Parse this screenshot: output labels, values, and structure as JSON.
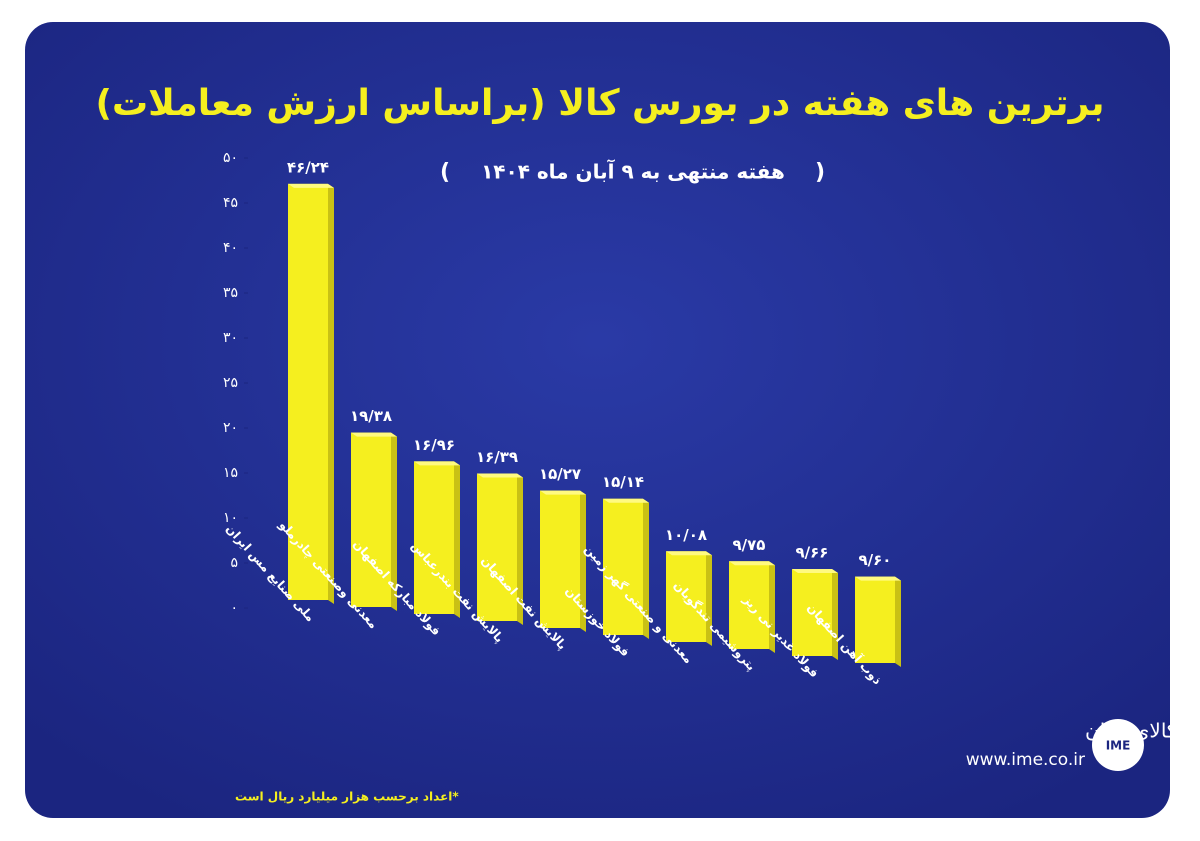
{
  "chart_data": {
    "type": "bar",
    "title": "برترین های هفته در بورس کالا (براساس ارزش معاملات)",
    "subtitle": "هفته منتهی به ۹ آبان ماه ۱۴۰۴",
    "categories": [
      "ملی صنایع مس ایران",
      "معدنی وصنعتی چادرملو",
      "فولاد مبارکه اصفهان",
      "پالایش نفت بندرعباس",
      "پالایش نفت اصفهان",
      "فولاد خوزستان",
      "معدنی و صنعتی گهر زمین",
      "پتروشیمی تندگویان",
      "فولاد غدیر نی ریز",
      "ذوب آهن اصفهان"
    ],
    "values": [
      46.24,
      19.38,
      16.96,
      16.39,
      15.27,
      15.14,
      10.08,
      9.75,
      9.66,
      9.6
    ],
    "value_labels": [
      "۴۶/۲۴",
      "۱۹/۳۸",
      "۱۶/۹۶",
      "۱۶/۳۹",
      "۱۵/۲۷",
      "۱۵/۱۴",
      "۱۰/۰۸",
      "۹/۷۵",
      "۹/۶۶",
      "۹/۶۰"
    ],
    "color": "#f5ef1f",
    "ylim": [
      0,
      50
    ],
    "yticks": [
      {
        "value": 0,
        "label": "۰"
      },
      {
        "value": 5,
        "label": "۵"
      },
      {
        "value": 10,
        "label": "۱۰"
      },
      {
        "value": 15,
        "label": "۱۵"
      },
      {
        "value": 20,
        "label": "۲۰"
      },
      {
        "value": 25,
        "label": "۲۵"
      },
      {
        "value": 30,
        "label": "۳۰"
      },
      {
        "value": 35,
        "label": "۳۵"
      },
      {
        "value": 40,
        "label": "۴۰"
      },
      {
        "value": 45,
        "label": "۴۵"
      },
      {
        "value": 50,
        "label": "۵۰"
      }
    ],
    "footnote": "*اعداد برحسب هزار میلیارد ریال است",
    "logo_name": "بورس کالای ایران",
    "logo_url": "www.ime.co.ir",
    "logo_badge": "IME"
  }
}
